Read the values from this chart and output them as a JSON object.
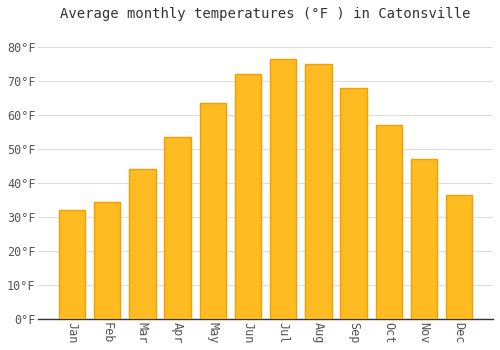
{
  "title": "Average monthly temperatures (°F ) in Catonsville",
  "months": [
    "Jan",
    "Feb",
    "Mar",
    "Apr",
    "May",
    "Jun",
    "Jul",
    "Aug",
    "Sep",
    "Oct",
    "Nov",
    "Dec"
  ],
  "values": [
    32,
    34.5,
    44,
    53.5,
    63.5,
    72,
    76.5,
    75,
    68,
    57,
    47,
    36.5
  ],
  "bar_color_face": "#FFBB22",
  "bar_color_edge": "#F0A000",
  "background_color": "#FFFFFF",
  "grid_color": "#DDDDDD",
  "title_fontsize": 10,
  "tick_fontsize": 8.5,
  "yticks": [
    0,
    10,
    20,
    30,
    40,
    50,
    60,
    70,
    80
  ],
  "ylim": [
    0,
    86
  ],
  "bar_width": 0.75
}
